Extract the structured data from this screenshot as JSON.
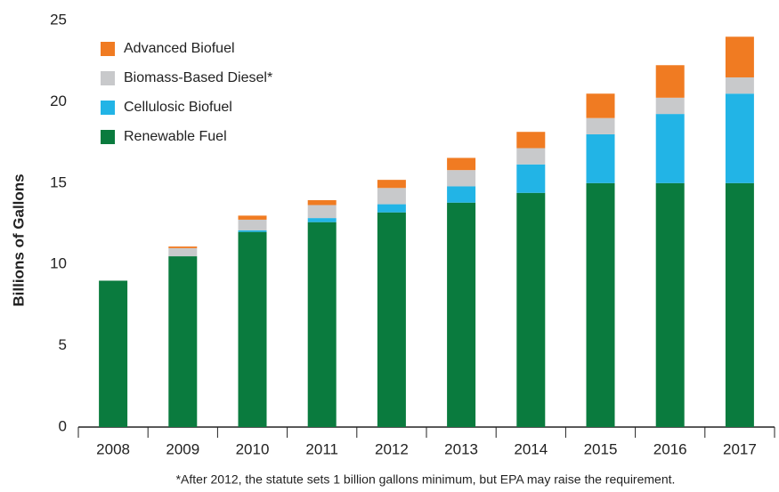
{
  "chart_data": {
    "type": "stacked_bar",
    "y_label": "Billions of Gallons",
    "footnote": "*After 2012, the statute sets 1 billion gallons minimum, but EPA may raise the requirement.",
    "categories": [
      "2008",
      "2009",
      "2010",
      "2011",
      "2012",
      "2013",
      "2014",
      "2015",
      "2016",
      "2017"
    ],
    "series": [
      {
        "name": "Renewable Fuel",
        "color": "#0a7b3e",
        "values": [
          9,
          10.5,
          12,
          12.6,
          13.2,
          13.8,
          14.4,
          15,
          15,
          15
        ]
      },
      {
        "name": "Cellulosic Biofuel",
        "color": "#22b4e6",
        "values": [
          0,
          0,
          0.1,
          0.25,
          0.5,
          1.0,
          1.75,
          3.0,
          4.25,
          5.5
        ]
      },
      {
        "name": "Biomass-Based Diesel*",
        "color": "#c8c9cb",
        "values": [
          0,
          0.5,
          0.65,
          0.8,
          1.0,
          1.0,
          1.0,
          1.0,
          1.0,
          1.0
        ]
      },
      {
        "name": "Advanced Biofuel",
        "color": "#f07b22",
        "values": [
          0,
          0.1,
          0.25,
          0.3,
          0.5,
          0.75,
          1.0,
          1.5,
          2.0,
          2.5
        ]
      }
    ],
    "ylim": [
      0,
      25
    ],
    "yticks": [
      0,
      5,
      10,
      15,
      20,
      25
    ],
    "legend": "upper-left"
  }
}
